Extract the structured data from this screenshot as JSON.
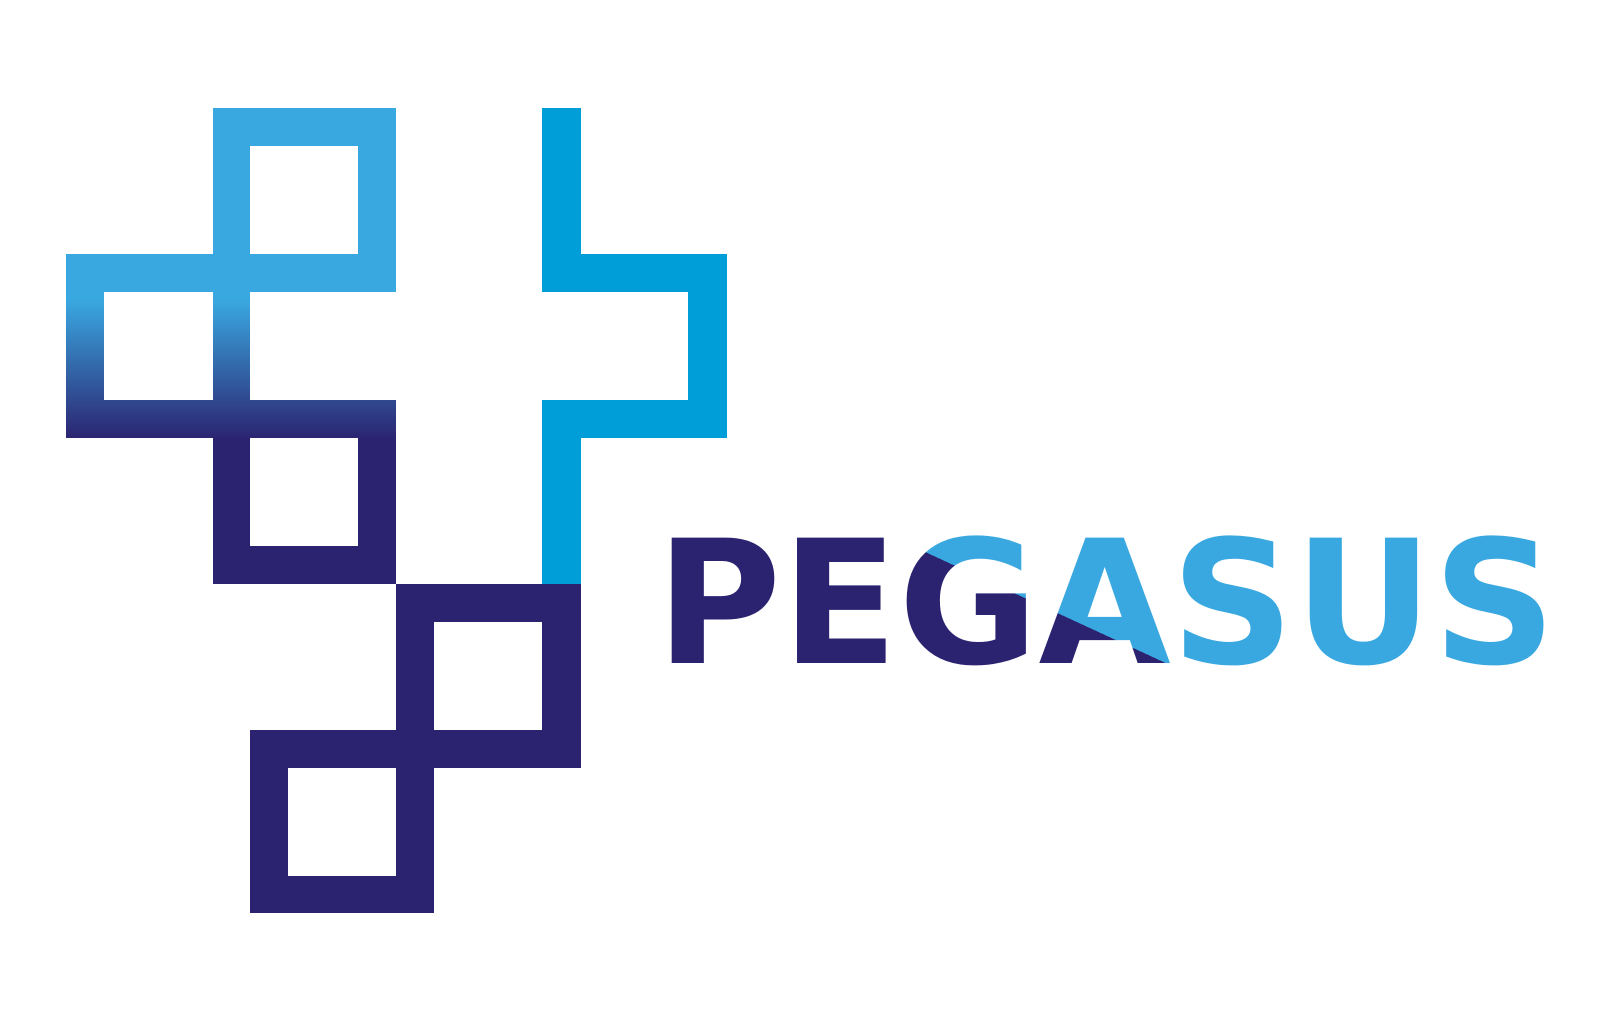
{
  "logo": {
    "wordmark": "PEGASUS",
    "colors": {
      "navy": "#2b2370",
      "sky_blue": "#3aa8e0",
      "cyan_blue": "#009ed9",
      "background": "#ffffff"
    }
  }
}
